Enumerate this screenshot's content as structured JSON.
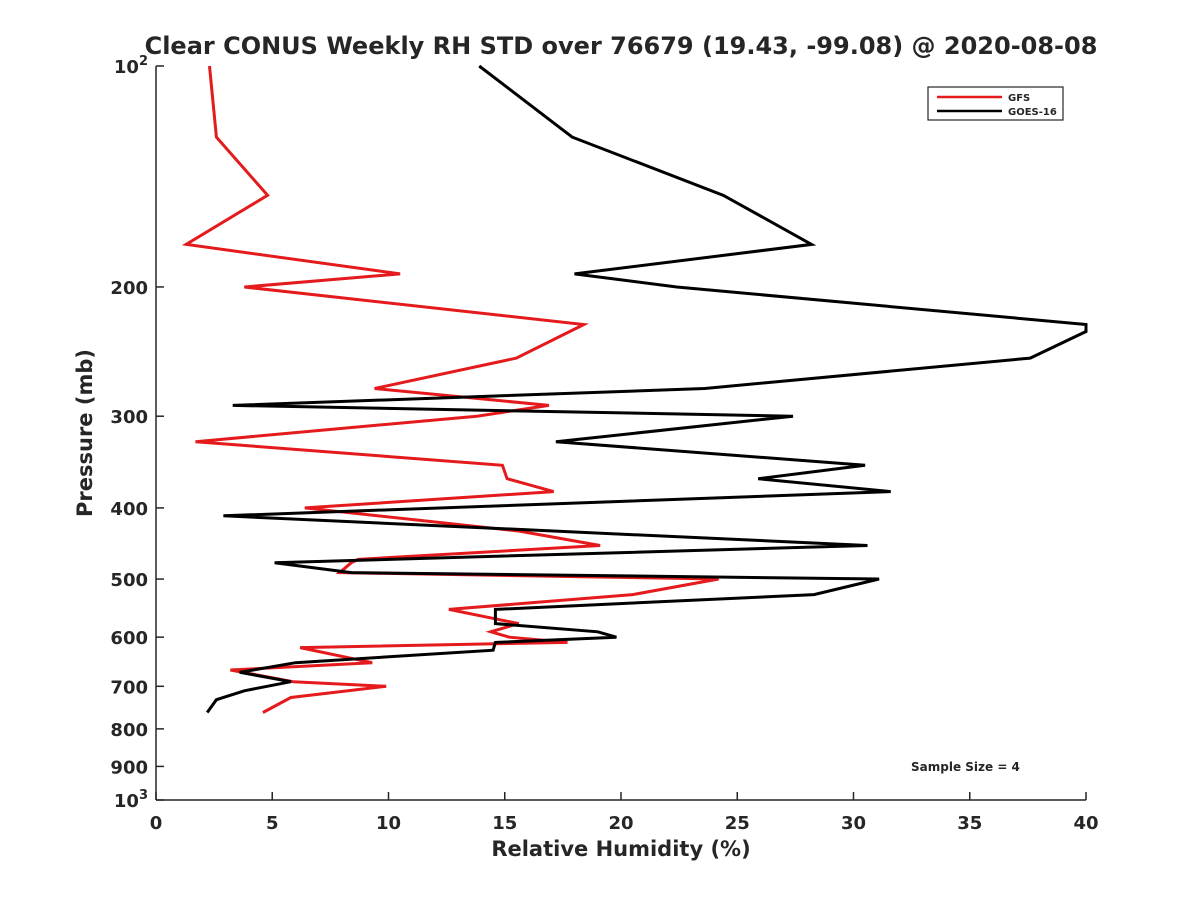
{
  "chart_data": {
    "type": "line",
    "title": "Clear CONUS Weekly RH STD over 76679 (19.43, -99.08) @ 2020-08-08",
    "xlabel": "Relative Humidity (%)",
    "ylabel": "Pressure (mb)",
    "xlim": [
      0,
      40
    ],
    "ylim": [
      1000,
      100
    ],
    "y_scale": "log",
    "y_reversed": true,
    "grid": false,
    "legend_position": "top-right",
    "x_ticks": [
      "0",
      "5",
      "10",
      "15",
      "20",
      "25",
      "30",
      "35",
      "40"
    ],
    "y_ticks": [
      {
        "value": 100,
        "base": "10",
        "exp": "2"
      },
      {
        "value": 200,
        "label": "200"
      },
      {
        "value": 300,
        "label": "300"
      },
      {
        "value": 400,
        "label": "400"
      },
      {
        "value": 500,
        "label": "500"
      },
      {
        "value": 600,
        "label": "600"
      },
      {
        "value": 700,
        "label": "700"
      },
      {
        "value": 800,
        "label": "800"
      },
      {
        "value": 900,
        "label": "900"
      },
      {
        "value": 1000,
        "base": "10",
        "exp": "3"
      }
    ],
    "annotation": "Sample Size = 4",
    "series": [
      {
        "name": "GFS",
        "color": "#e41a1c",
        "points": [
          [
            2.3,
            100
          ],
          [
            2.6,
            125
          ],
          [
            4.8,
            150
          ],
          [
            1.3,
            175
          ],
          [
            10.5,
            192
          ],
          [
            3.8,
            200
          ],
          [
            18.4,
            225
          ],
          [
            15.5,
            250
          ],
          [
            9.4,
            275
          ],
          [
            16.9,
            290
          ],
          [
            13.8,
            300
          ],
          [
            1.7,
            325
          ],
          [
            14.9,
            350
          ],
          [
            15.1,
            365
          ],
          [
            17.1,
            380
          ],
          [
            6.4,
            400
          ],
          [
            15.6,
            430
          ],
          [
            19.1,
            450
          ],
          [
            8.7,
            470
          ],
          [
            8.4,
            475
          ],
          [
            7.9,
            490
          ],
          [
            24.2,
            500
          ],
          [
            20.5,
            525
          ],
          [
            12.6,
            550
          ],
          [
            15.6,
            575
          ],
          [
            14.4,
            590
          ],
          [
            15.2,
            600
          ],
          [
            17.7,
            610
          ],
          [
            6.2,
            620
          ],
          [
            9.3,
            650
          ],
          [
            3.2,
            665
          ],
          [
            5.9,
            690
          ],
          [
            9.9,
            700
          ],
          [
            5.8,
            725
          ],
          [
            4.6,
            760
          ]
        ]
      },
      {
        "name": "GOES-16",
        "color": "#000000",
        "points": [
          [
            13.9,
            100
          ],
          [
            17.9,
            125
          ],
          [
            24.4,
            150
          ],
          [
            28.2,
            175
          ],
          [
            18.0,
            192
          ],
          [
            22.4,
            200
          ],
          [
            40.0,
            225
          ],
          [
            40.0,
            230
          ],
          [
            37.6,
            250
          ],
          [
            23.6,
            275
          ],
          [
            3.3,
            290
          ],
          [
            27.4,
            300
          ],
          [
            17.2,
            325
          ],
          [
            30.5,
            350
          ],
          [
            25.9,
            365
          ],
          [
            31.6,
            380
          ],
          [
            2.9,
            410
          ],
          [
            30.6,
            450
          ],
          [
            5.1,
            475
          ],
          [
            8.4,
            490
          ],
          [
            31.1,
            500
          ],
          [
            28.3,
            525
          ],
          [
            14.6,
            550
          ],
          [
            14.6,
            575
          ],
          [
            19.0,
            590
          ],
          [
            19.8,
            600
          ],
          [
            14.6,
            610
          ],
          [
            14.5,
            625
          ],
          [
            6.0,
            650
          ],
          [
            3.6,
            670
          ],
          [
            5.8,
            690
          ],
          [
            3.8,
            710
          ],
          [
            2.6,
            730
          ],
          [
            2.2,
            760
          ]
        ]
      }
    ]
  }
}
